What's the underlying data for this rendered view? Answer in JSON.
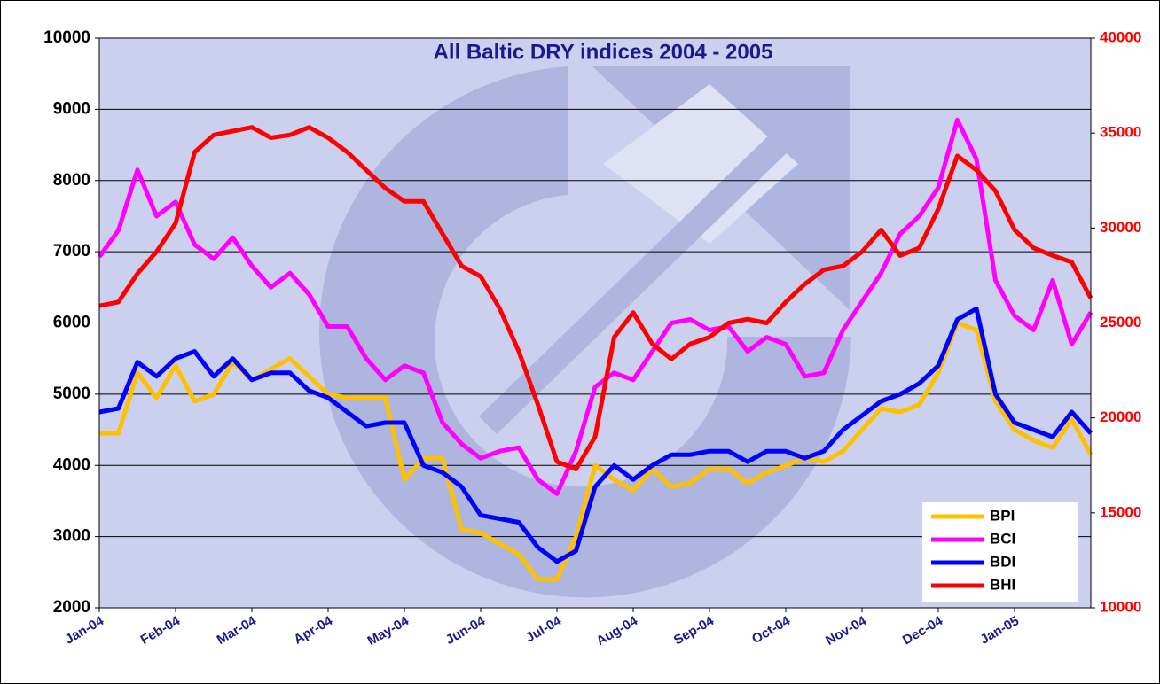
{
  "chart_data": {
    "type": "line",
    "title": "All Baltic DRY indices 2004 - 2005",
    "categories": [
      "Jan-04",
      null,
      null,
      null,
      "Feb-04",
      null,
      null,
      null,
      "Mar-04",
      null,
      null,
      null,
      "Apr-04",
      null,
      null,
      null,
      "May-04",
      null,
      null,
      null,
      "Jun-04",
      null,
      null,
      null,
      "Jul-04",
      null,
      null,
      null,
      "Aug-04",
      null,
      null,
      null,
      "Sep-04",
      null,
      null,
      null,
      "Oct-04",
      null,
      null,
      null,
      "Nov-04",
      null,
      null,
      null,
      "Dec-04",
      null,
      null,
      null,
      "Jan-05",
      null,
      null,
      null,
      null
    ],
    "series": [
      {
        "name": "BPI",
        "color": "#ffc000",
        "values": [
          4450,
          4450,
          5300,
          4950,
          5400,
          4900,
          5000,
          5450,
          5200,
          5350,
          5500,
          5250,
          5000,
          4950,
          4950,
          4950,
          3800,
          4100,
          4100,
          3100,
          3050,
          2900,
          2750,
          2400,
          2400,
          3000,
          4000,
          3800,
          3650,
          3950,
          3700,
          3750,
          3950,
          3950,
          3750,
          3900,
          4000,
          4100,
          4050,
          4200,
          4500,
          4800,
          4750,
          4850,
          5300,
          6000,
          5900,
          4900,
          4500,
          4350,
          4250,
          4650,
          4150
        ]
      },
      {
        "name": "BCI",
        "color": "#ff00ff",
        "values": [
          6930,
          7300,
          8150,
          7500,
          7700,
          7100,
          6900,
          7200,
          6800,
          6500,
          6700,
          6400,
          5950,
          5950,
          5500,
          5200,
          5400,
          5300,
          4600,
          4300,
          4100,
          4200,
          4250,
          3800,
          3600,
          4200,
          5100,
          5300,
          5200,
          5600,
          6000,
          6050,
          5900,
          5950,
          5600,
          5800,
          5700,
          5250,
          5300,
          5900,
          6300,
          6700,
          7250,
          7500,
          7900,
          8850,
          8300,
          6600,
          6100,
          5900,
          6600,
          5700,
          6150
        ]
      },
      {
        "name": "BDI",
        "color": "#0000ff",
        "values": [
          4750,
          4800,
          5450,
          5250,
          5500,
          5600,
          5250,
          5500,
          5200,
          5300,
          5300,
          5050,
          4950,
          4750,
          4550,
          4600,
          4600,
          4000,
          3900,
          3700,
          3300,
          3250,
          3200,
          2850,
          2650,
          2800,
          3700,
          4000,
          3800,
          4000,
          4150,
          4150,
          4200,
          4200,
          4050,
          4200,
          4200,
          4100,
          4200,
          4500,
          4700,
          4900,
          5000,
          5150,
          5400,
          6050,
          6200,
          5000,
          4600,
          4500,
          4400,
          4750,
          4450
        ]
      },
      {
        "name": "BHI",
        "color": "#ff0000",
        "axis": "y2",
        "values": [
          25900,
          26100,
          27600,
          28750,
          30250,
          34000,
          34900,
          35100,
          35300,
          34750,
          34900,
          35300,
          34750,
          34000,
          33050,
          32100,
          31400,
          31400,
          29700,
          28000,
          27450,
          25750,
          23500,
          20700,
          17700,
          17300,
          19000,
          24250,
          25550,
          23900,
          23100,
          23900,
          24250,
          25000,
          25200,
          25000,
          26100,
          27050,
          27800,
          28000,
          28750,
          29900,
          28550,
          28950,
          31000,
          33800,
          33050,
          31950,
          29900,
          28950,
          28550,
          28200,
          26300
        ]
      }
    ],
    "ylim": [
      2000,
      10000
    ],
    "yticks": [
      2000,
      3000,
      4000,
      5000,
      6000,
      7000,
      8000,
      9000,
      10000
    ],
    "y2lim": [
      10000,
      40000
    ],
    "y2ticks": [
      10000,
      15000,
      20000,
      25000,
      30000,
      35000,
      40000
    ],
    "grid": true,
    "legend": "lower right"
  }
}
